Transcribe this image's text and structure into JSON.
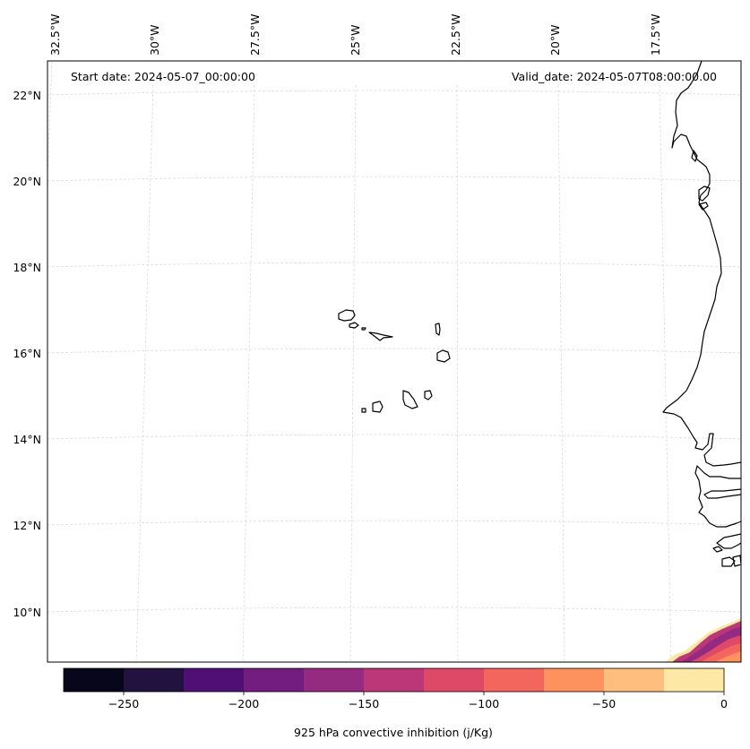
{
  "map": {
    "start_date": "Start date: 2024-05-07_00:00:00",
    "valid_date": "Valid_date: 2024-05-07T08:00:00.00",
    "lon_labels": [
      "32.5°W",
      "30°W",
      "27.5°W",
      "25°W",
      "22.5°W",
      "20°W",
      "17.5°W"
    ],
    "lat_labels": [
      "22°N",
      "20°N",
      "18°N",
      "16°N",
      "14°N",
      "12°N",
      "10°N"
    ],
    "colors": {
      "coastline": "#000000",
      "gridline": "#cccccc"
    }
  },
  "colorbar": {
    "label": "925 hPa convective inhibition (j/Kg)",
    "tick_labels": [
      "−250",
      "−200",
      "−150",
      "−100",
      "−50",
      "0"
    ],
    "levels": [
      -275,
      -250,
      -225,
      -200,
      -175,
      -150,
      -125,
      -100,
      -75,
      -50,
      -25,
      0
    ],
    "colors": [
      "#07061b",
      "#22123f",
      "#4f0f74",
      "#731d80",
      "#952b80",
      "#bb3778",
      "#de4968",
      "#f2665d",
      "#fd925f",
      "#febe7e",
      "#fde9a5"
    ]
  }
}
